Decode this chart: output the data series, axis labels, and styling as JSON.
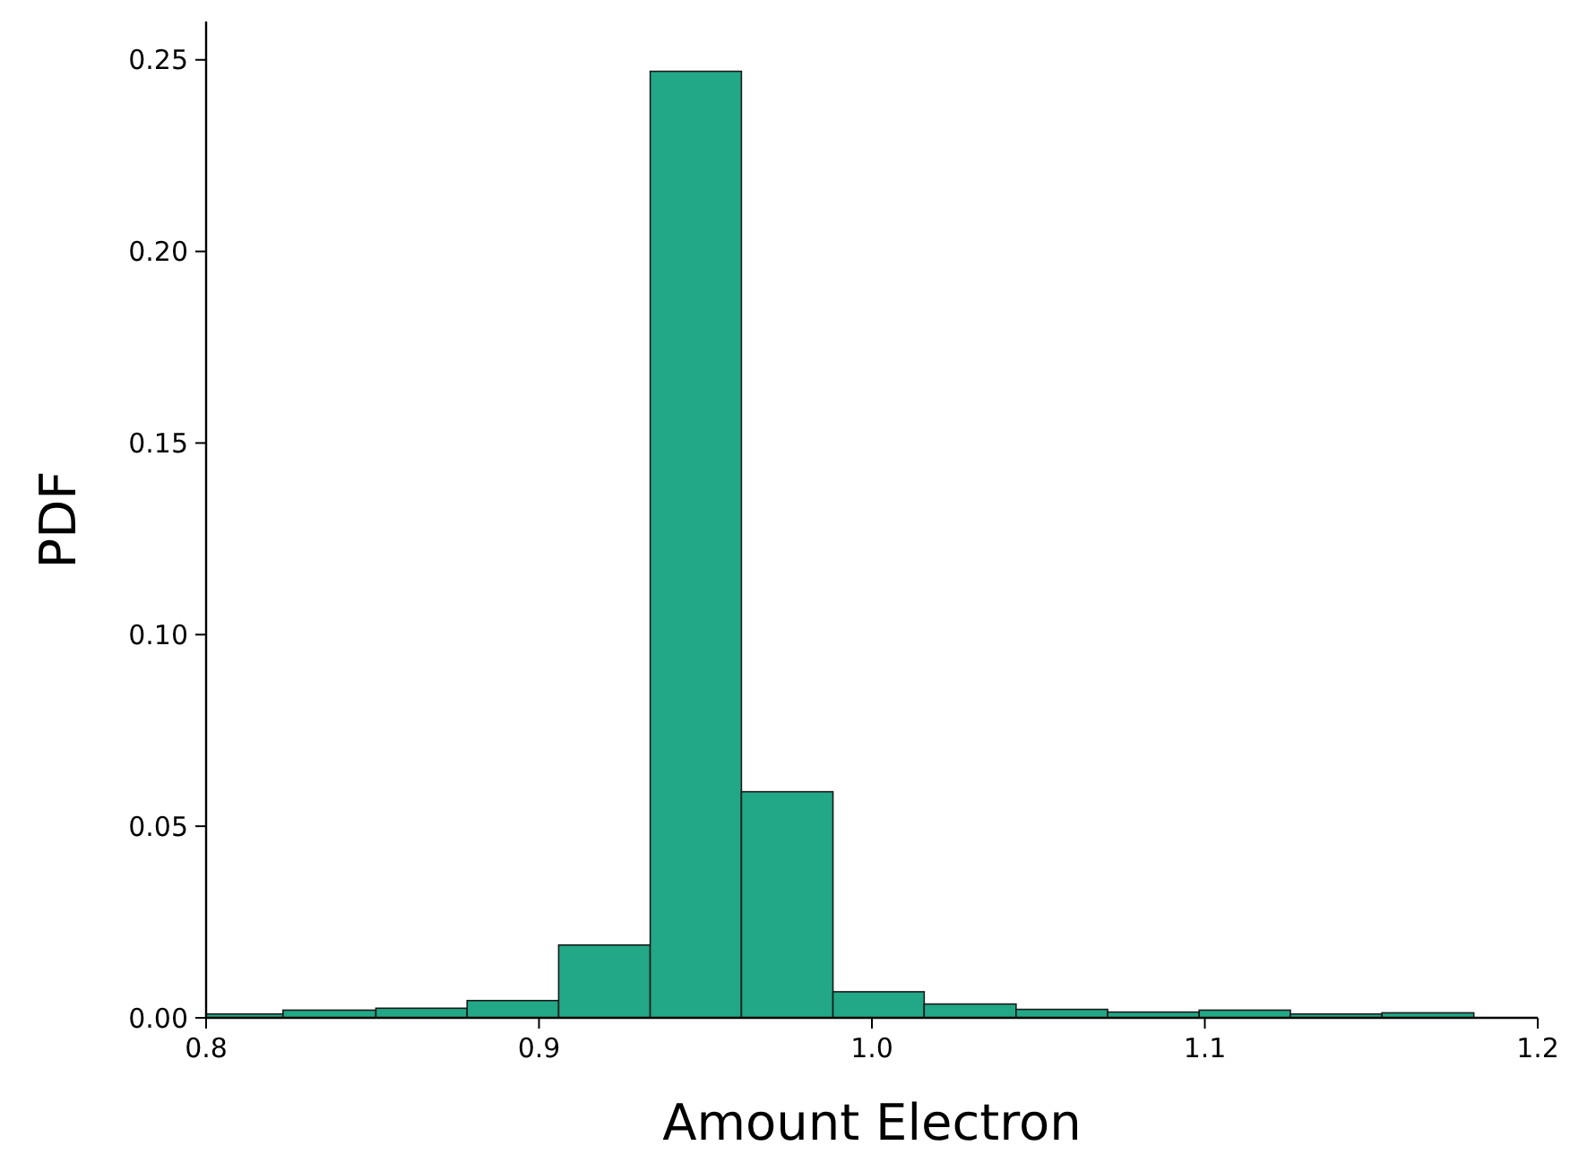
{
  "chart_data": {
    "type": "histogram",
    "xlabel": "Amount Electron",
    "ylabel": "PDF",
    "bins": [
      0.8,
      0.8231,
      0.851,
      0.8784,
      0.9059,
      0.9334,
      0.9608,
      0.9883,
      1.0157,
      1.0433,
      1.0708,
      1.0983,
      1.1257,
      1.1532,
      1.1808
    ],
    "values": [
      0.001,
      0.002,
      0.0025,
      0.0045,
      0.019,
      0.247,
      0.059,
      0.0068,
      0.0036,
      0.0022,
      0.0015,
      0.002,
      0.001,
      0.0013
    ],
    "color": "#22a886",
    "xlim": [
      0.8,
      1.2
    ],
    "ylim": [
      0,
      0.26
    ],
    "xticks": [
      0.8,
      0.9,
      {
        "value": 1.0,
        "label": "1.0"
      },
      1.1,
      {
        "value": 1.2,
        "label": "1.2"
      }
    ],
    "yticks": [
      {
        "value": 0,
        "label": "0.00"
      },
      0.05,
      {
        "value": 0.1,
        "label": "0.10"
      },
      0.15,
      {
        "value": 0.2,
        "label": "0.20"
      },
      0.25
    ],
    "grid": false
  }
}
